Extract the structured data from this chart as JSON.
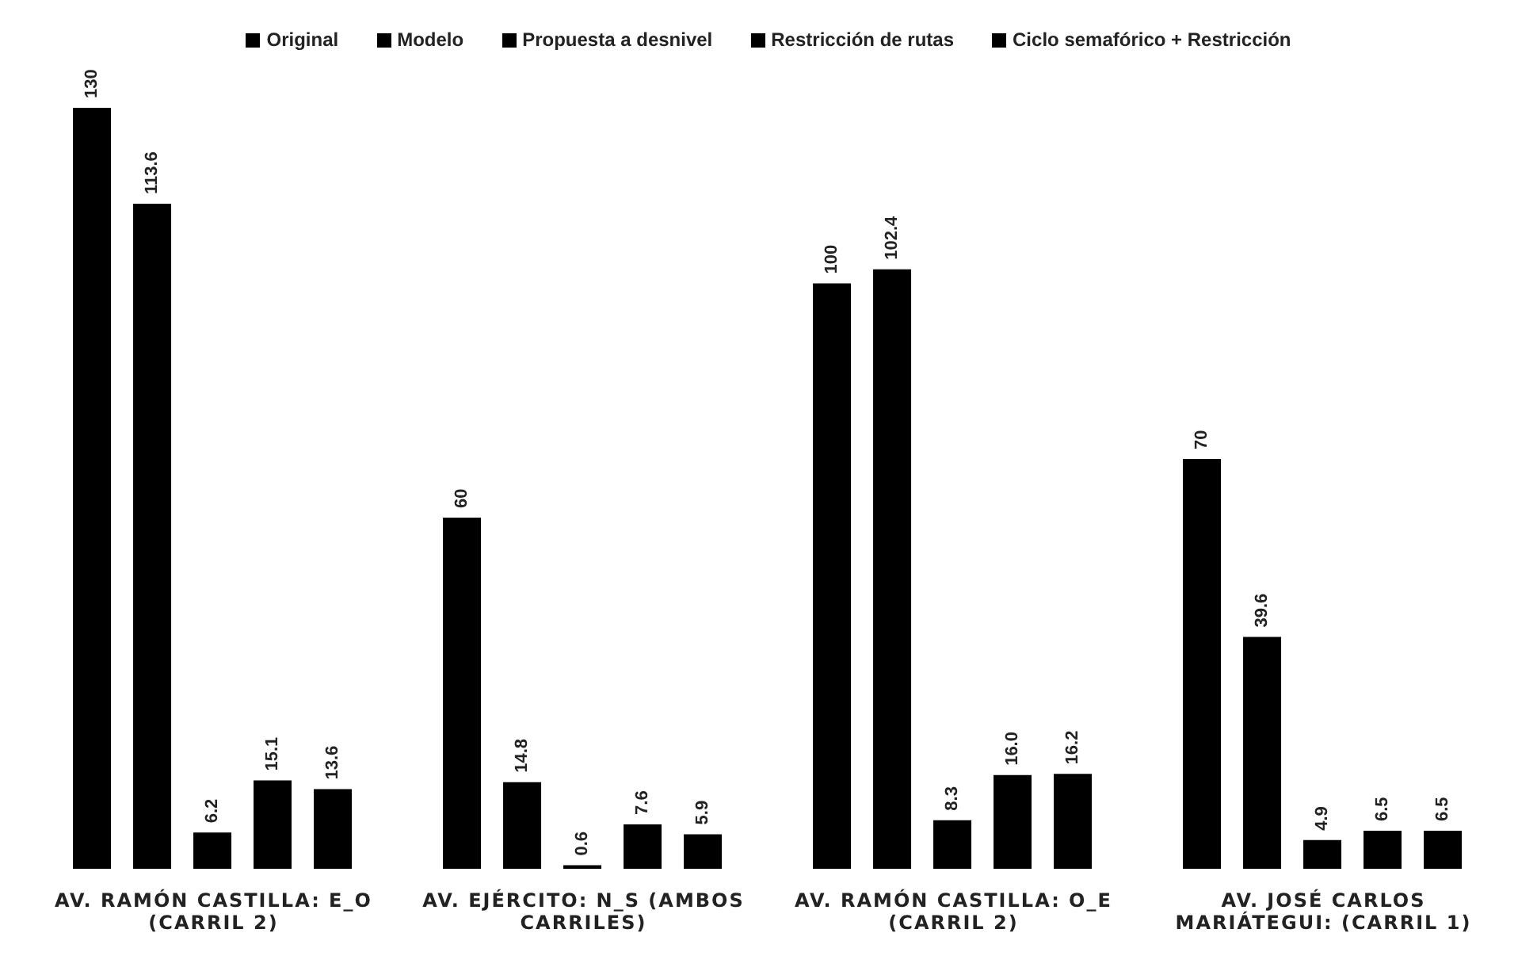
{
  "chart_data": {
    "type": "bar",
    "categories": [
      "AV. RAMÓN CASTILLA: E_O (CARRIL 2)",
      "AV. EJÉRCITO: N_S (AMBOS CARRILES)",
      "AV. RAMÓN CASTILLA: O_E (CARRIL 2)",
      "AV. JOSÉ CARLOS MARIÁTEGUI: (CARRIL 1)"
    ],
    "series": [
      {
        "name": "Original",
        "color": "#000000",
        "values": [
          130,
          60,
          100,
          70
        ],
        "value_labels": [
          "130",
          "60",
          "100",
          "70"
        ]
      },
      {
        "name": "Modelo",
        "color": "#000000",
        "values": [
          113.6,
          14.8,
          102.4,
          39.6
        ],
        "value_labels": [
          "113.6",
          "14.8",
          "102.4",
          "39.6"
        ]
      },
      {
        "name": "Propuesta a desnivel",
        "color": "#000000",
        "values": [
          6.2,
          0.6,
          8.3,
          4.9
        ],
        "value_labels": [
          "6.2",
          "0.6",
          "8.3",
          "4.9"
        ]
      },
      {
        "name": "Restricción de rutas",
        "color": "#000000",
        "values": [
          15.1,
          7.6,
          16.0,
          6.5
        ],
        "value_labels": [
          "15.1",
          "7.6",
          "16.0",
          "6.5"
        ]
      },
      {
        "name": "Ciclo semafórico + Restricción",
        "color": "#000000",
        "values": [
          13.6,
          5.9,
          16.2,
          6.5
        ],
        "value_labels": [
          "13.6",
          "5.9",
          "16.2",
          "6.5"
        ]
      }
    ],
    "legend": "top"
  }
}
